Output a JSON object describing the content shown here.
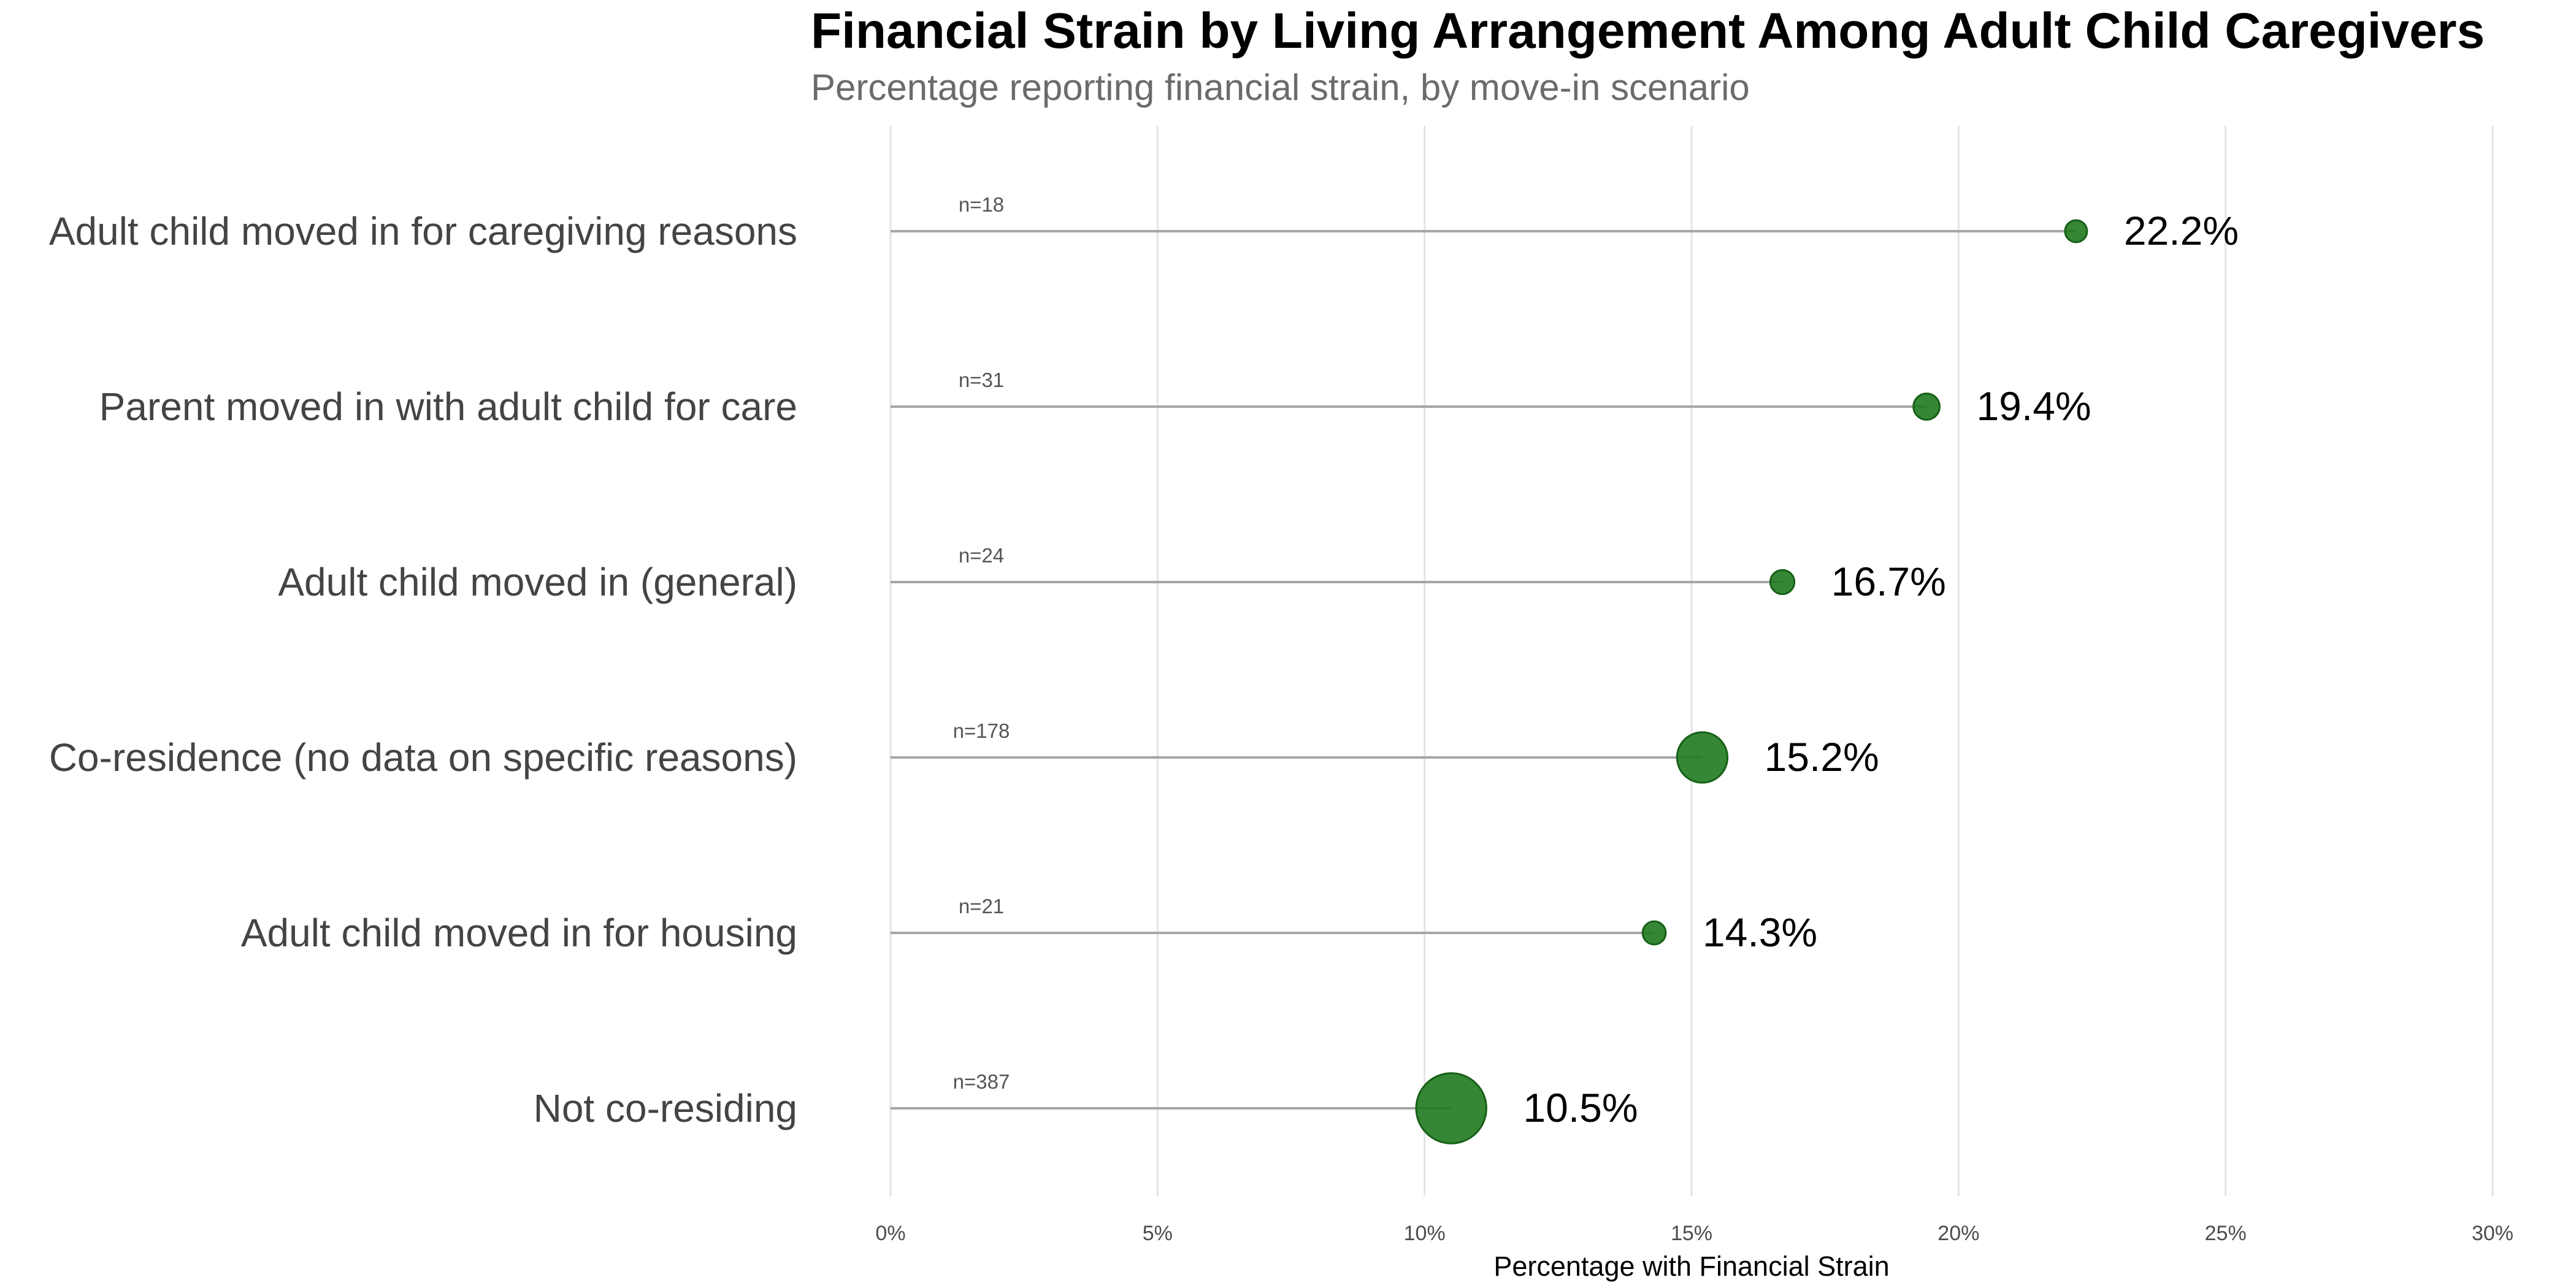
{
  "chart_data": {
    "type": "lollipop",
    "title": "Financial Strain by Living Arrangement Among Adult Child Caregivers",
    "subtitle": "Percentage reporting financial strain, by move-in scenario",
    "xlabel": "Percentage with Financial Strain",
    "ylabel": "",
    "xlim": [
      0,
      30
    ],
    "x_ticks": [
      {
        "value": 0,
        "label": "0%"
      },
      {
        "value": 5,
        "label": "5%"
      },
      {
        "value": 10,
        "label": "10%"
      },
      {
        "value": 15,
        "label": "15%"
      },
      {
        "value": 20,
        "label": "20%"
      },
      {
        "value": 25,
        "label": "25%"
      },
      {
        "value": 30,
        "label": "30%"
      }
    ],
    "grid": "vertical",
    "point_color": "#1f7a1f",
    "stem_color": "#a6a6a6",
    "grid_color": "#e3e3e3",
    "categories": [
      "Adult child moved in for caregiving reasons",
      "Parent moved in with adult child for care",
      "Adult child moved in (general)",
      "Co-residence (no data on specific reasons)",
      "Adult child moved in for housing",
      "Not co-residing"
    ],
    "values": [
      22.2,
      19.4,
      16.7,
      15.2,
      14.3,
      10.5
    ],
    "value_labels": [
      "22.2%",
      "19.4%",
      "16.7%",
      "15.2%",
      "14.3%",
      "10.5%"
    ],
    "sample_sizes": [
      18,
      31,
      24,
      178,
      21,
      387
    ],
    "sample_labels": [
      "n=18",
      "n=31",
      "n=24",
      "n=178",
      "n=21",
      "n=387"
    ]
  }
}
